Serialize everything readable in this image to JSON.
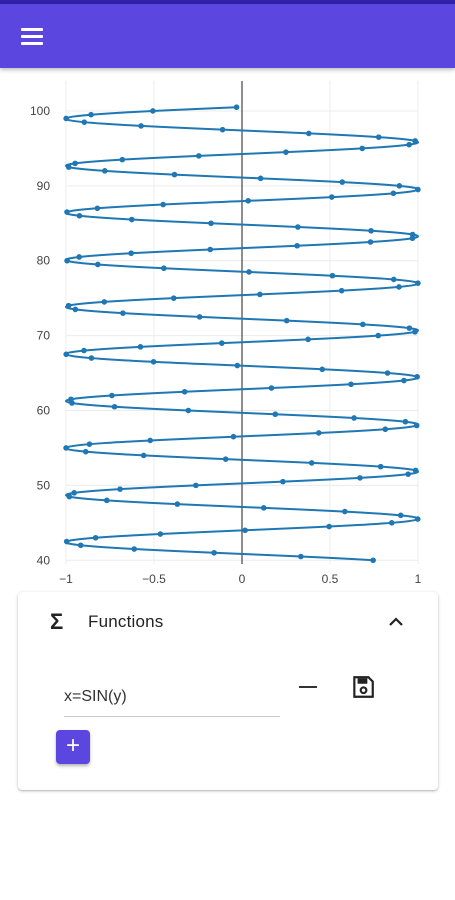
{
  "app_bar": {
    "menu_icon": "menu-icon",
    "color": "#5b46e0"
  },
  "chart_data": {
    "type": "line",
    "function": "x=SIN(y)",
    "series": [
      {
        "marker": "circle",
        "color": "#1f77b4",
        "y_range": [
          40,
          100.5
        ],
        "y_step": 0.5
      }
    ],
    "xlim": [
      -1,
      1
    ],
    "ylim": [
      39.5,
      104
    ],
    "x_ticks": [
      "−1",
      "−0.5",
      "0",
      "0.5",
      "1"
    ],
    "y_ticks": [
      "40",
      "50",
      "60",
      "70",
      "80",
      "90",
      "100"
    ],
    "grid": true
  },
  "functions_panel": {
    "icon": "sigma-icon",
    "icon_glyph": "Σ",
    "title": "Functions",
    "expanded": true,
    "items": [
      {
        "expression": "x=SIN(y)"
      }
    ],
    "add_label": "+"
  }
}
